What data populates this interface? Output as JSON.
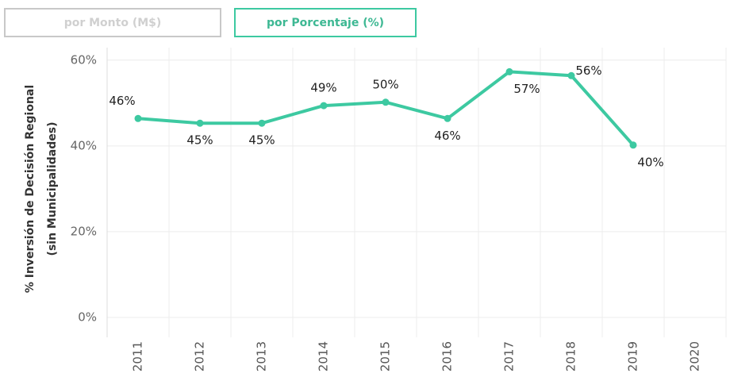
{
  "buttons": [
    "por Monto (M$)",
    "por Porcentaje (%)"
  ],
  "chart_data": {
    "type": "line",
    "ylabel": [
      "% Inversión de Decisión Regional",
      "(sin Municipalidades)"
    ],
    "categories": [
      "2011",
      "2012",
      "2013",
      "2014",
      "2015",
      "2016",
      "2017",
      "2018",
      "2019",
      "2020"
    ],
    "series": [
      {
        "name": "% Inversión",
        "color": "#3dc9a1",
        "values": [
          46.4,
          45.3,
          45.3,
          49.4,
          50.2,
          46.4,
          57.3,
          56.4,
          40.2,
          null
        ],
        "value_labels": [
          "46%",
          "45%",
          "45%",
          "49%",
          "50%",
          "46%",
          "57%",
          "56%",
          "40%",
          null
        ]
      }
    ],
    "ylim": [
      0,
      62
    ],
    "yticks": [
      {
        "value": 0,
        "label": "0%"
      },
      {
        "value": 20,
        "label": "20%"
      },
      {
        "value": 40,
        "label": "40%"
      },
      {
        "value": 60,
        "label": "60%"
      }
    ],
    "grid": true
  }
}
